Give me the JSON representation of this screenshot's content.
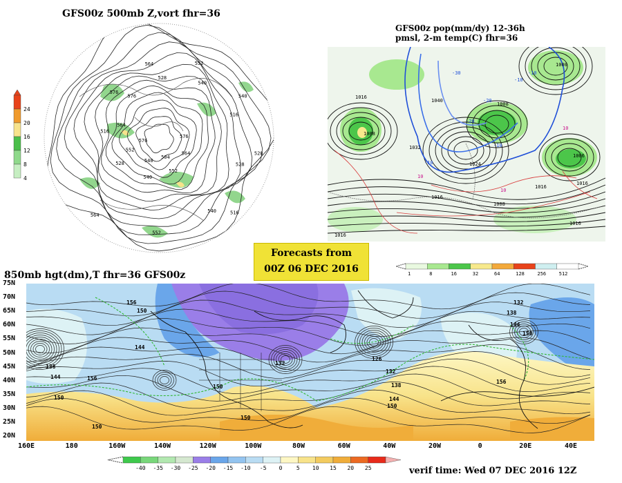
{
  "top_left": {
    "title": "GFS00z   500mb  Z,vort     fhr=36",
    "colorbar_ticks": [
      "24",
      "20",
      "16",
      "12",
      "8",
      "4"
    ],
    "colorbar_colors": [
      "#e8431a",
      "#f09a2c",
      "#f7e38c",
      "#4bbf4a",
      "#8fd98b",
      "#c6eec2"
    ],
    "contour_labels": [
      "576",
      "564",
      "552",
      "540",
      "528",
      "516",
      "576",
      "564",
      "552",
      "540",
      "528",
      "516",
      "504",
      "540",
      "552",
      "564",
      "576",
      "528",
      "540",
      "516",
      "528",
      "540",
      "552",
      "564",
      "576"
    ]
  },
  "top_right": {
    "title_line1": "GFS00z pop(mm/dy) 12-36h",
    "title_line2": "pmsl, 2-m temp(C)  fhr=36",
    "colorbar_ticks": [
      "1",
      "8",
      "16",
      "32",
      "64",
      "128",
      "256",
      "512"
    ],
    "colorbar_colors": [
      "#e9f9e0",
      "#a8e890",
      "#4cc64a",
      "#f7e98c",
      "#f3a93a",
      "#e8431a",
      "#cfeff0",
      "#ffffff"
    ],
    "pressure_labels": [
      "1016",
      "1008",
      "1040",
      "1032",
      "1024",
      "1008",
      "1000",
      "1006",
      "1016",
      "1016",
      "1016",
      "1016",
      "1016",
      "1008"
    ],
    "temp_labels": [
      "-30",
      "-20",
      "-10",
      "-10",
      "-20",
      "10",
      "-10",
      "10",
      "-10",
      "10"
    ]
  },
  "forecast_box": {
    "line1": "Forecasts from",
    "line2": "00Z 06 DEC 2016"
  },
  "bottom": {
    "title": "850mb hgt(dm),T  fhr=36 GFS00z",
    "lat_labels": [
      "75N",
      "70N",
      "65N",
      "60N",
      "55N",
      "50N",
      "45N",
      "40N",
      "35N",
      "30N",
      "25N",
      "20N"
    ],
    "lon_labels": [
      "160E",
      "180",
      "160W",
      "140W",
      "120W",
      "100W",
      "80W",
      "60W",
      "40W",
      "20W",
      "0",
      "20E",
      "40E"
    ],
    "height_labels": [
      "156",
      "150",
      "144",
      "138",
      "144",
      "150",
      "156",
      "150",
      "132",
      "126",
      "132",
      "138",
      "144",
      "150",
      "132",
      "138",
      "144",
      "150",
      "156",
      "150",
      "150"
    ],
    "colorbar_ticks": [
      "-40",
      "-35",
      "-30",
      "-25",
      "-20",
      "-15",
      "-10",
      "-5",
      "0",
      "5",
      "10",
      "15",
      "20",
      "25"
    ],
    "colorbar_colors": [
      "#3ec94c",
      "#78d77a",
      "#b2e8b0",
      "#d5e8d0",
      "#9a7ee8",
      "#6aa6ea",
      "#93c4f0",
      "#b9dcf3",
      "#ddf2f5",
      "#fdf7c4",
      "#f8e38a",
      "#f3cb5f",
      "#f0ad3a",
      "#ec6a22",
      "#e82a1a"
    ]
  },
  "verif_time": "verif time: Wed 07 DEC 2016 12Z"
}
